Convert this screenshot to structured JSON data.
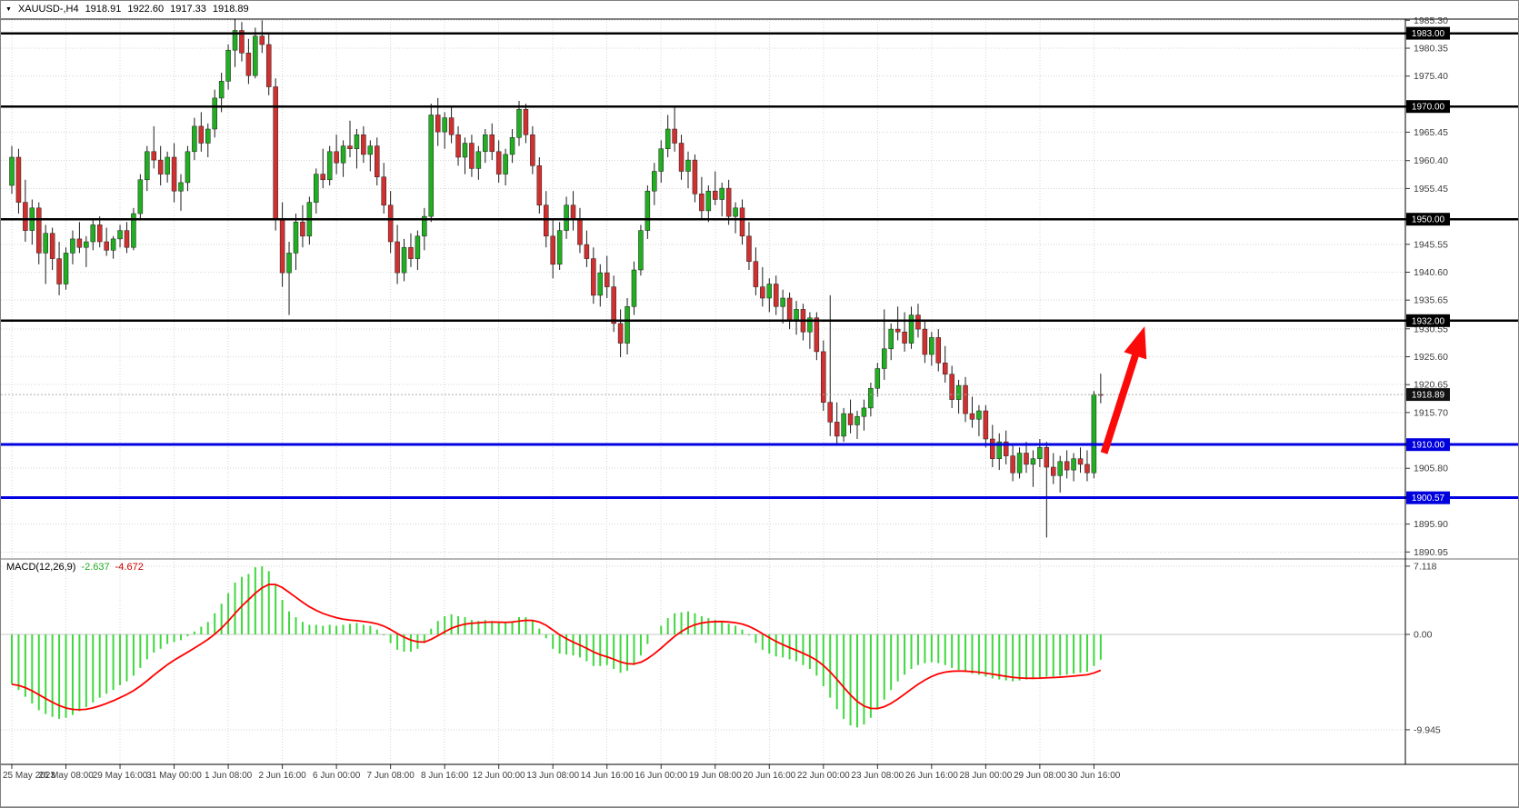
{
  "quote_bar": {
    "caret": "▼",
    "symbol": "XAUUSD-,H4",
    "open": "1918.91",
    "high": "1922.60",
    "low": "1917.33",
    "close": "1918.89"
  },
  "macd_panel": {
    "name": "MACD(12,26,9)",
    "value": "-2.637",
    "signal": "-4.672",
    "scale_labels": [
      "7.118",
      "0.00",
      "-9.945"
    ],
    "scale_values": [
      7.118,
      0,
      -9.945
    ]
  },
  "price_axis": {
    "label_values": [
      1985.3,
      1980.35,
      1975.4,
      1965.45,
      1960.4,
      1955.45,
      1945.55,
      1940.6,
      1935.65,
      1930.55,
      1925.6,
      1920.65,
      1915.7,
      1905.8,
      1895.9,
      1890.95
    ],
    "badges": [
      {
        "value": 1983.0,
        "label": "1983.00",
        "bg": "#000000"
      },
      {
        "value": 1970.0,
        "label": "1970.00",
        "bg": "#000000"
      },
      {
        "value": 1950.0,
        "label": "1950.00",
        "bg": "#000000"
      },
      {
        "value": 1932.0,
        "label": "1932.00",
        "bg": "#000000"
      },
      {
        "value": 1918.89,
        "label": "1918.89",
        "bg": "#111111"
      },
      {
        "value": 1910.0,
        "label": "1910.00",
        "bg": "#0000DC"
      },
      {
        "value": 1900.57,
        "label": "1900.57",
        "bg": "#0000DC"
      }
    ]
  },
  "time_axis": {
    "labels": [
      [
        0,
        "25 May 2023"
      ],
      [
        8,
        "26 May 08:00"
      ],
      [
        16,
        "29 May 16:00"
      ],
      [
        24,
        "31 May 00:00"
      ],
      [
        32,
        "1 Jun 08:00"
      ],
      [
        40,
        "2 Jun 16:00"
      ],
      [
        48,
        "6 Jun 00:00"
      ],
      [
        56,
        "7 Jun 08:00"
      ],
      [
        64,
        "8 Jun 16:00"
      ],
      [
        72,
        "12 Jun 00:00"
      ],
      [
        80,
        "13 Jun 08:00"
      ],
      [
        88,
        "14 Jun 16:00"
      ],
      [
        96,
        "16 Jun 00:00"
      ],
      [
        104,
        "19 Jun 08:00"
      ],
      [
        112,
        "20 Jun 16:00"
      ],
      [
        120,
        "22 Jun 00:00"
      ],
      [
        128,
        "23 Jun 08:00"
      ],
      [
        136,
        "26 Jun 16:00"
      ],
      [
        144,
        "28 Jun 00:00"
      ],
      [
        152,
        "29 Jun 08:00"
      ],
      [
        160,
        "30 Jun 16:00"
      ]
    ]
  },
  "objects": {
    "hlines": [
      {
        "value": 1983.0,
        "color": "#000000",
        "width": 2.5
      },
      {
        "value": 1970.0,
        "color": "#000000",
        "width": 2.5
      },
      {
        "value": 1950.0,
        "color": "#000000",
        "width": 2.5
      },
      {
        "value": 1932.0,
        "color": "#000000",
        "width": 2.5
      },
      {
        "value": 1910.0,
        "color": "#0000E0",
        "width": 3
      },
      {
        "value": 1900.57,
        "color": "#0000E0",
        "width": 3
      }
    ],
    "bid_line": {
      "value": 1918.89,
      "color": "#ADADAD"
    },
    "arrow": {
      "start_index": 161.5,
      "start_price": 1908.5,
      "end_index": 167.5,
      "end_price": 1931,
      "color": "#FB0A0A"
    }
  },
  "colors": {
    "bull": "#22AE22",
    "bear": "#D13030",
    "wick": "#1C1C1C",
    "grid": "#D6D6D6",
    "macd_bar": "#3FD83F",
    "macd_signal": "#FF0000",
    "axis_text": "#3C3C3C",
    "badge_text": "#FFFFFF"
  },
  "chart_data": {
    "type": "candlestick",
    "symbol": "XAUUSD",
    "timeframe": "H4",
    "title": "XAUUSD-,H4 1918.91 1922.60 1917.33 1918.89",
    "ohlc_current": {
      "open": 1918.91,
      "high": 1922.6,
      "low": 1917.33,
      "close": 1918.89
    },
    "price_range": [
      1889.0,
      1986.0
    ],
    "grid": true,
    "candles": [
      [
        1956,
        1963,
        1954.5,
        1961
      ],
      [
        1961,
        1962.5,
        1951,
        1953
      ],
      [
        1953,
        1957,
        1946,
        1948
      ],
      [
        1948,
        1953.5,
        1945.5,
        1952
      ],
      [
        1952,
        1953,
        1942,
        1944
      ],
      [
        1944,
        1949,
        1938.5,
        1947.5
      ],
      [
        1947.5,
        1948.5,
        1941,
        1943
      ],
      [
        1943,
        1946,
        1936.5,
        1938.5
      ],
      [
        1938.5,
        1945,
        1937.5,
        1944
      ],
      [
        1944,
        1948,
        1942,
        1946.5
      ],
      [
        1946.5,
        1949.5,
        1944,
        1945
      ],
      [
        1945,
        1947,
        1941.5,
        1946
      ],
      [
        1946,
        1950,
        1944.5,
        1949
      ],
      [
        1949,
        1950.5,
        1945,
        1946
      ],
      [
        1946,
        1948.5,
        1943.5,
        1944.5
      ],
      [
        1944.5,
        1947,
        1943,
        1946.5
      ],
      [
        1946.5,
        1949,
        1945,
        1948
      ],
      [
        1948,
        1949.5,
        1944,
        1945
      ],
      [
        1945,
        1952,
        1944.5,
        1951
      ],
      [
        1951,
        1958,
        1950,
        1957
      ],
      [
        1957,
        1963,
        1955,
        1962
      ],
      [
        1962,
        1966.5,
        1959,
        1960.5
      ],
      [
        1960.5,
        1963,
        1956,
        1958
      ],
      [
        1958,
        1962,
        1956.5,
        1961
      ],
      [
        1961,
        1963.5,
        1953,
        1955
      ],
      [
        1955,
        1958,
        1951.5,
        1956.5
      ],
      [
        1956.5,
        1963,
        1955,
        1962
      ],
      [
        1962,
        1968,
        1960.5,
        1966.5
      ],
      [
        1966.5,
        1969,
        1962,
        1963.5
      ],
      [
        1963.5,
        1967,
        1961,
        1966
      ],
      [
        1966,
        1973,
        1964.5,
        1971.5
      ],
      [
        1971.5,
        1976,
        1969,
        1974.5
      ],
      [
        1974.5,
        1981,
        1973,
        1980
      ],
      [
        1980,
        1985.5,
        1977,
        1983.5
      ],
      [
        1983.5,
        1985,
        1978,
        1979.5
      ],
      [
        1979.5,
        1982,
        1974,
        1975.5
      ],
      [
        1975.5,
        1984,
        1975,
        1982.5
      ],
      [
        1982.5,
        1985.3,
        1979.5,
        1981
      ],
      [
        1981,
        1983,
        1972,
        1973.5
      ],
      [
        1973.5,
        1975,
        1948,
        1950
      ],
      [
        1950,
        1953,
        1938,
        1940.5
      ],
      [
        1940.5,
        1946,
        1933,
        1944
      ],
      [
        1944,
        1951,
        1941,
        1949.5
      ],
      [
        1949.5,
        1952.5,
        1945,
        1947
      ],
      [
        1947,
        1954,
        1945.5,
        1953
      ],
      [
        1953,
        1959,
        1951,
        1958
      ],
      [
        1958,
        1962.5,
        1955.5,
        1957
      ],
      [
        1957,
        1963,
        1956,
        1962
      ],
      [
        1962,
        1965,
        1958,
        1960
      ],
      [
        1960,
        1964,
        1957.5,
        1963
      ],
      [
        1963,
        1967.5,
        1961,
        1962.5
      ],
      [
        1962.5,
        1966,
        1959,
        1965
      ],
      [
        1965,
        1966.5,
        1960,
        1961.5
      ],
      [
        1961.5,
        1964,
        1958.5,
        1963
      ],
      [
        1963,
        1964.5,
        1956,
        1957.5
      ],
      [
        1957.5,
        1960,
        1951,
        1952.5
      ],
      [
        1952.5,
        1955,
        1944,
        1946
      ],
      [
        1946,
        1949,
        1938.5,
        1940.5
      ],
      [
        1940.5,
        1946.5,
        1939,
        1945
      ],
      [
        1945,
        1947.5,
        1941.5,
        1943
      ],
      [
        1943,
        1948,
        1941,
        1947
      ],
      [
        1947,
        1952,
        1944.5,
        1950.5
      ],
      [
        1950.5,
        1970.5,
        1949.5,
        1968.5
      ],
      [
        1968.5,
        1971.5,
        1963,
        1965.5
      ],
      [
        1965.5,
        1969,
        1962.5,
        1968
      ],
      [
        1968,
        1970,
        1963.5,
        1965
      ],
      [
        1965,
        1966.5,
        1959.5,
        1961
      ],
      [
        1961,
        1964.5,
        1958,
        1963.5
      ],
      [
        1963.5,
        1965,
        1957.5,
        1959
      ],
      [
        1959,
        1963,
        1957,
        1962
      ],
      [
        1962,
        1966,
        1960,
        1965
      ],
      [
        1965,
        1967,
        1960.5,
        1962
      ],
      [
        1962,
        1964,
        1956.5,
        1958
      ],
      [
        1958,
        1962.5,
        1956,
        1961.5
      ],
      [
        1961.5,
        1966,
        1960,
        1964.5
      ],
      [
        1964.5,
        1971,
        1963,
        1969.5
      ],
      [
        1969.5,
        1970.5,
        1963.5,
        1965
      ],
      [
        1965,
        1966.5,
        1958,
        1959.5
      ],
      [
        1959.5,
        1961,
        1951,
        1952.5
      ],
      [
        1952.5,
        1955,
        1945,
        1947
      ],
      [
        1947,
        1950,
        1939.5,
        1942
      ],
      [
        1942,
        1949.5,
        1941,
        1948
      ],
      [
        1948,
        1954,
        1946.5,
        1952.5
      ],
      [
        1952.5,
        1955,
        1948,
        1950
      ],
      [
        1950,
        1952,
        1944,
        1945.5
      ],
      [
        1945.5,
        1948,
        1941.5,
        1943
      ],
      [
        1943,
        1945,
        1935,
        1936.5
      ],
      [
        1936.5,
        1942,
        1934.5,
        1940.5
      ],
      [
        1940.5,
        1943.5,
        1936,
        1938
      ],
      [
        1938,
        1940,
        1930,
        1931.5
      ],
      [
        1931.5,
        1934,
        1925.5,
        1928
      ],
      [
        1928,
        1936,
        1926,
        1934.5
      ],
      [
        1934.5,
        1942.5,
        1933,
        1941
      ],
      [
        1941,
        1949,
        1940,
        1948
      ],
      [
        1948,
        1956,
        1946.5,
        1955
      ],
      [
        1955,
        1960,
        1952.5,
        1958.5
      ],
      [
        1958.5,
        1964,
        1956.5,
        1962.5
      ],
      [
        1962.5,
        1968.5,
        1961,
        1966
      ],
      [
        1966,
        1970,
        1962,
        1963.5
      ],
      [
        1963.5,
        1965,
        1957,
        1958.5
      ],
      [
        1958.5,
        1962,
        1955.5,
        1960.5
      ],
      [
        1960.5,
        1961.5,
        1953,
        1954.5
      ],
      [
        1954.5,
        1957.5,
        1950,
        1951.5
      ],
      [
        1951.5,
        1956,
        1949.5,
        1955
      ],
      [
        1955,
        1958.5,
        1952.5,
        1953.5
      ],
      [
        1953.5,
        1956.5,
        1950.5,
        1955.5
      ],
      [
        1955.5,
        1957,
        1949,
        1950.5
      ],
      [
        1950.5,
        1953,
        1947.5,
        1952
      ],
      [
        1952,
        1953.5,
        1945.5,
        1947
      ],
      [
        1947,
        1949.5,
        1941,
        1942.5
      ],
      [
        1942.5,
        1945,
        1936.5,
        1938
      ],
      [
        1938,
        1941.5,
        1934.5,
        1936
      ],
      [
        1936,
        1939.5,
        1933.5,
        1938.5
      ],
      [
        1938.5,
        1940,
        1933,
        1934.5
      ],
      [
        1934.5,
        1937.5,
        1931.5,
        1936
      ],
      [
        1936,
        1937,
        1930.5,
        1932
      ],
      [
        1932,
        1935.5,
        1929.5,
        1934
      ],
      [
        1934,
        1935,
        1928.5,
        1930
      ],
      [
        1930,
        1933.5,
        1927,
        1932.5
      ],
      [
        1932.5,
        1933.5,
        1925,
        1926.5
      ],
      [
        1926.5,
        1928.5,
        1916,
        1917.5
      ],
      [
        1917.5,
        1936.5,
        1911.5,
        1914
      ],
      [
        1914,
        1917.5,
        1910,
        1911.5
      ],
      [
        1911.5,
        1916.5,
        1910.5,
        1915.5
      ],
      [
        1915.5,
        1918,
        1912,
        1913.5
      ],
      [
        1913.5,
        1916,
        1911,
        1915
      ],
      [
        1915,
        1918,
        1912.5,
        1916.5
      ],
      [
        1916.5,
        1921,
        1915,
        1920
      ],
      [
        1920,
        1924.5,
        1918.5,
        1923.5
      ],
      [
        1923.5,
        1934,
        1921.5,
        1927
      ],
      [
        1927,
        1931.5,
        1925,
        1930.5
      ],
      [
        1930.5,
        1934.5,
        1928.5,
        1930
      ],
      [
        1930,
        1933.5,
        1926.5,
        1928
      ],
      [
        1928,
        1934.5,
        1927,
        1933
      ],
      [
        1933,
        1935,
        1929,
        1930.5
      ],
      [
        1930.5,
        1932,
        1924.5,
        1926
      ],
      [
        1926,
        1930,
        1924,
        1929
      ],
      [
        1929,
        1930.5,
        1923,
        1924.5
      ],
      [
        1924.5,
        1927.5,
        1921,
        1922.5
      ],
      [
        1922.5,
        1924,
        1916.5,
        1918
      ],
      [
        1918,
        1921.5,
        1915.5,
        1920.5
      ],
      [
        1920.5,
        1922,
        1914,
        1915.5
      ],
      [
        1915.5,
        1918.5,
        1913,
        1914.5
      ],
      [
        1914.5,
        1917,
        1911.5,
        1916
      ],
      [
        1916,
        1917,
        1909.5,
        1911
      ],
      [
        1911,
        1913.5,
        1906,
        1907.5
      ],
      [
        1907.5,
        1912,
        1905.5,
        1910.5
      ],
      [
        1910.5,
        1912.5,
        1906.5,
        1908
      ],
      [
        1908,
        1910,
        1903.5,
        1905
      ],
      [
        1905,
        1909.5,
        1904,
        1908.5
      ],
      [
        1908.5,
        1910.5,
        1905,
        1906.5
      ],
      [
        1906.5,
        1909,
        1902.5,
        1907.5
      ],
      [
        1907.5,
        1911,
        1906,
        1909.5
      ],
      [
        1909.5,
        1910.5,
        1893.5,
        1906
      ],
      [
        1906,
        1908.5,
        1903,
        1904.5
      ],
      [
        1904.5,
        1908,
        1901.5,
        1907
      ],
      [
        1907,
        1909,
        1904,
        1905.5
      ],
      [
        1905.5,
        1908.5,
        1903.5,
        1907.5
      ],
      [
        1907.5,
        1909.5,
        1905,
        1906.5
      ],
      [
        1906.5,
        1909,
        1903.5,
        1905
      ],
      [
        1905,
        1919.5,
        1904,
        1918.9
      ],
      [
        1918.91,
        1922.6,
        1917.33,
        1918.89
      ]
    ],
    "indicator": {
      "type": "MACD",
      "params": [
        12,
        26,
        9
      ],
      "macd_display": -2.637,
      "signal_display": -4.672,
      "range": [
        -9.945,
        7.118
      ],
      "histogram": [
        -5.2,
        -5.8,
        -6.5,
        -7.2,
        -7.9,
        -8.3,
        -8.6,
        -8.8,
        -8.7,
        -8.4,
        -8.0,
        -7.6,
        -7.1,
        -6.6,
        -6.2,
        -5.8,
        -5.3,
        -4.9,
        -4.3,
        -3.5,
        -2.6,
        -1.9,
        -1.5,
        -1.0,
        -0.8,
        -0.6,
        -0.2,
        0.3,
        0.8,
        1.3,
        2.2,
        3.2,
        4.3,
        5.4,
        6.0,
        6.3,
        7.0,
        7.1,
        6.6,
        5.2,
        3.6,
        2.4,
        1.8,
        1.3,
        1.0,
        1.0,
        0.9,
        1.0,
        0.9,
        1.0,
        1.1,
        1.2,
        1.0,
        0.9,
        0.5,
        -0.1,
        -0.9,
        -1.6,
        -1.8,
        -1.8,
        -1.5,
        -0.9,
        0.6,
        1.4,
        1.9,
        2.1,
        1.9,
        1.8,
        1.5,
        1.4,
        1.5,
        1.4,
        1.2,
        1.2,
        1.4,
        1.8,
        1.8,
        1.4,
        0.6,
        -0.4,
        -1.5,
        -2.0,
        -2.1,
        -2.2,
        -2.4,
        -2.8,
        -3.3,
        -3.3,
        -3.2,
        -3.6,
        -4.0,
        -3.8,
        -3.2,
        -2.2,
        -1.0,
        0.0,
        0.9,
        1.7,
        2.2,
        2.3,
        2.4,
        2.2,
        1.9,
        1.7,
        1.5,
        1.4,
        1.1,
        0.9,
        0.5,
        -0.1,
        -0.9,
        -1.6,
        -2.0,
        -2.3,
        -2.4,
        -2.6,
        -2.8,
        -3.2,
        -3.6,
        -4.3,
        -5.4,
        -6.6,
        -7.8,
        -8.8,
        -9.5,
        -9.7,
        -9.4,
        -8.7,
        -7.8,
        -6.8,
        -5.8,
        -4.9,
        -4.2,
        -3.6,
        -3.2,
        -3.0,
        -2.9,
        -3.0,
        -3.2,
        -3.5,
        -3.7,
        -3.9,
        -4.1,
        -4.2,
        -4.4,
        -4.6,
        -4.7,
        -4.8,
        -4.9,
        -4.8,
        -4.7,
        -4.6,
        -4.5,
        -4.4,
        -4.4,
        -4.3,
        -4.2,
        -4.1,
        -4.0,
        -3.9,
        -3.3,
        -2.637
      ]
    }
  }
}
